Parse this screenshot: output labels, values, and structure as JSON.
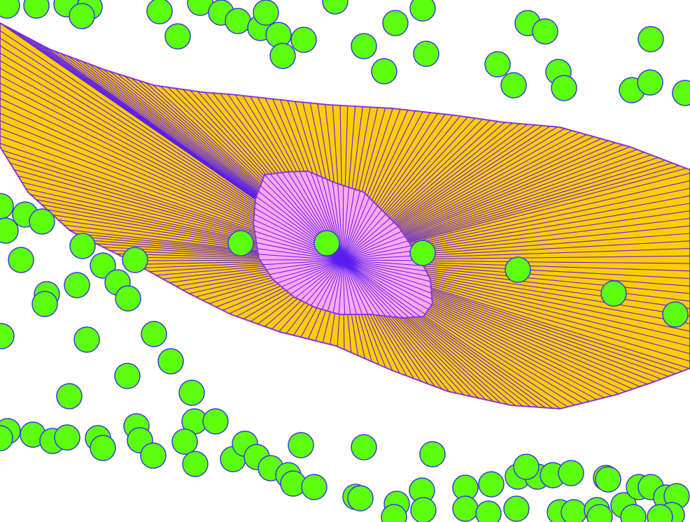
{
  "scene": {
    "background": "#ffffff",
    "visibility_fill": "#ffcc00",
    "inner_fill": "#ffa6ee",
    "ray_color": "#5a1ef0",
    "outline_color": "#8a3be0",
    "dot_fill": "#5cff10",
    "dot_stroke": "#3b3bd6"
  }
}
